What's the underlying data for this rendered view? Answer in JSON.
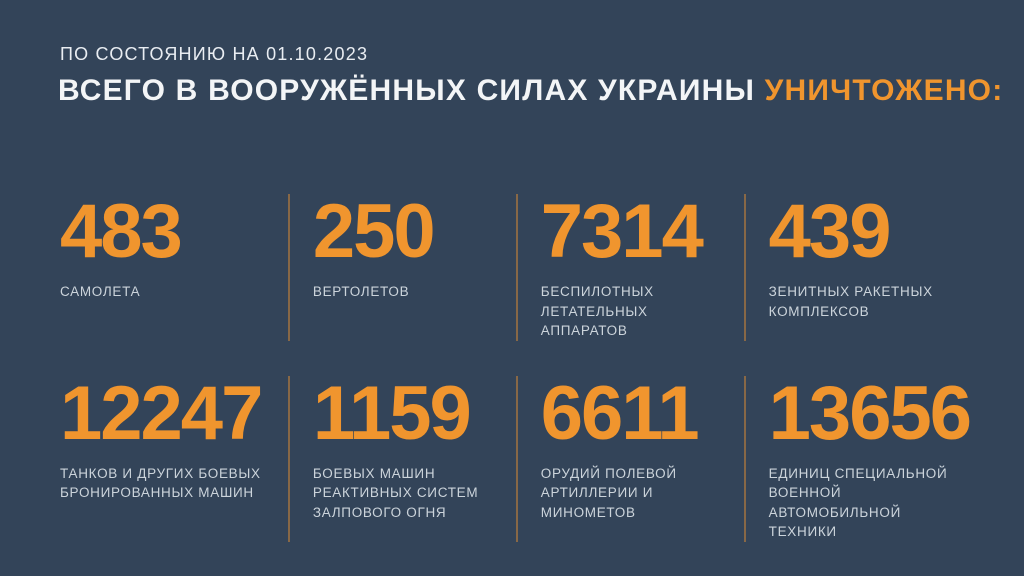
{
  "page": {
    "background_color": "#334459",
    "accent_color": "#f0952e",
    "text_color": "#f3f5f7",
    "label_color": "#ccd4db"
  },
  "header": {
    "date_line": "ПО СОСТОЯНИЮ НА 01.10.2023",
    "title_white": "ВСЕГО В ВООРУЖЁННЫХ СИЛАХ УКРАИНЫ ",
    "title_orange": "УНИЧТОЖЕНО:"
  },
  "stats": {
    "items": [
      {
        "value": "483",
        "label": "САМОЛЕТА"
      },
      {
        "value": "250",
        "label": "ВЕРТОЛЕТОВ"
      },
      {
        "value": "7314",
        "label": "БЕСПИЛОТНЫХ\nЛЕТАТЕЛЬНЫХ АППАРАТОВ"
      },
      {
        "value": "439",
        "label": "ЗЕНИТНЫХ РАКЕТНЫХ\nКОМПЛЕКСОВ"
      },
      {
        "value": "12247",
        "label": "ТАНКОВ И ДРУГИХ БОЕВЫХ\nБРОНИРОВАННЫХ МАШИН"
      },
      {
        "value": "1159",
        "label": "БОЕВЫХ МАШИН\nРЕАКТИВНЫХ СИСТЕМ\nЗАЛПОВОГО ОГНЯ"
      },
      {
        "value": "6611",
        "label": "ОРУДИЙ ПОЛЕВОЙ\nАРТИЛЛЕРИИ И МИНОМЕТОВ"
      },
      {
        "value": "13656",
        "label": "ЕДИНИЦ СПЕЦИАЛЬНОЙ\nВОЕННОЙ АВТОМОБИЛЬНОЙ\nТЕХНИКИ"
      }
    ]
  },
  "chart_data": {
    "type": "table",
    "title": "ВСЕГО В ВООРУЖЁННЫХ СИЛАХ УКРАИНЫ УНИЧТОЖЕНО:",
    "subtitle": "ПО СОСТОЯНИЮ НА 01.10.2023",
    "categories": [
      "САМОЛЕТА",
      "ВЕРТОЛЕТОВ",
      "БЕСПИЛОТНЫХ ЛЕТАТЕЛЬНЫХ АППАРАТОВ",
      "ЗЕНИТНЫХ РАКЕТНЫХ КОМПЛЕКСОВ",
      "ТАНКОВ И ДРУГИХ БОЕВЫХ БРОНИРОВАННЫХ МАШИН",
      "БОЕВЫХ МАШИН РЕАКТИВНЫХ СИСТЕМ ЗАЛПОВОГО ОГНЯ",
      "ОРУДИЙ ПОЛЕВОЙ АРТИЛЛЕРИИ И МИНОМЕТОВ",
      "ЕДИНИЦ СПЕЦИАЛЬНОЙ ВОЕННОЙ АВТОМОБИЛЬНОЙ ТЕХНИКИ"
    ],
    "values": [
      483,
      250,
      7314,
      439,
      12247,
      1159,
      6611,
      13656
    ],
    "layout": "2 rows x 4 columns grid, value above label, vertical divider lines between columns",
    "value_color": "#f0952e",
    "grid": false,
    "legend": false
  }
}
